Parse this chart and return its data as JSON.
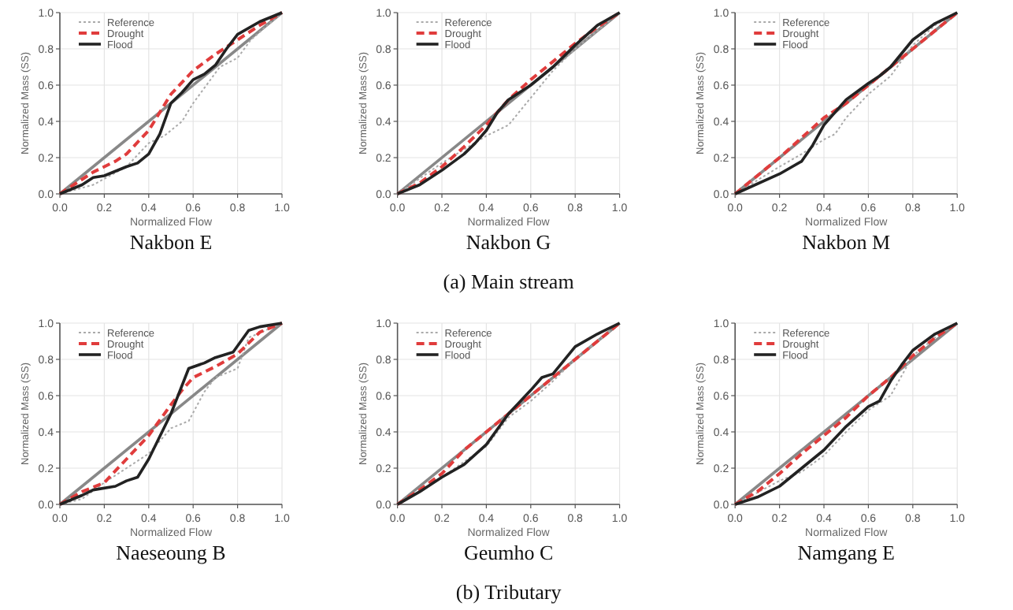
{
  "chart_data": [
    {
      "type": "line",
      "xlabel": "Normalized Flow",
      "ylabel": "Normalized Mass (SS)",
      "annotations": [
        "Nakbon E"
      ],
      "xlim": [
        0,
        1
      ],
      "ylim": [
        0,
        1
      ],
      "xticks": [
        {
          "value": 0,
          "label": "0.0"
        },
        {
          "value": 0.2,
          "label": "0.2"
        },
        {
          "value": 0.4,
          "label": "0.4"
        },
        {
          "value": 0.6,
          "label": "0.6"
        },
        {
          "value": 0.8,
          "label": "0.8"
        },
        {
          "value": 1,
          "label": "1.0"
        }
      ],
      "yticks": [
        {
          "value": 0,
          "label": "0.0"
        },
        {
          "value": 0.2,
          "label": "0.2"
        },
        {
          "value": 0.4,
          "label": "0.4"
        },
        {
          "value": 0.6,
          "label": "0.6"
        },
        {
          "value": 0.8,
          "label": "0.8"
        },
        {
          "value": 1,
          "label": "1.0"
        }
      ],
      "grid": true,
      "legend": "top left",
      "marker": "none",
      "series": [
        {
          "color": "#888888",
          "line_style": "solid",
          "x": [
            0,
            1
          ],
          "values": [
            0,
            1
          ]
        },
        {
          "name": "Reference",
          "color": "#aaaaaa",
          "line_style": "dotted",
          "x": [
            0,
            0.15,
            0.3,
            0.4,
            0.47,
            0.55,
            0.6,
            0.66,
            0.72,
            0.8,
            0.86,
            1
          ],
          "values": [
            0,
            0.05,
            0.15,
            0.28,
            0.32,
            0.4,
            0.5,
            0.6,
            0.7,
            0.75,
            0.85,
            1
          ]
        },
        {
          "name": "Drought",
          "color": "#e03c3c",
          "line_style": "dashed",
          "x": [
            0,
            0.15,
            0.25,
            0.3,
            0.4,
            0.5,
            0.6,
            0.7,
            0.8,
            0.9,
            1
          ],
          "values": [
            0,
            0.12,
            0.18,
            0.22,
            0.35,
            0.55,
            0.68,
            0.77,
            0.85,
            0.93,
            1
          ]
        },
        {
          "name": "Flood",
          "color": "#222222",
          "line_style": "solid",
          "x": [
            0,
            0.1,
            0.15,
            0.2,
            0.3,
            0.35,
            0.4,
            0.45,
            0.5,
            0.55,
            0.6,
            0.65,
            0.7,
            0.75,
            0.8,
            0.9,
            1
          ],
          "values": [
            0,
            0.05,
            0.09,
            0.1,
            0.15,
            0.17,
            0.22,
            0.33,
            0.5,
            0.56,
            0.63,
            0.66,
            0.71,
            0.8,
            0.88,
            0.95,
            1
          ]
        }
      ]
    },
    {
      "type": "line",
      "xlabel": "Normalized Flow",
      "ylabel": "Normalized Mass (SS)",
      "annotations": [
        "Nakbon G",
        "(a) Main stream"
      ],
      "xlim": [
        0,
        1
      ],
      "ylim": [
        0,
        1
      ],
      "xticks": [
        {
          "value": 0,
          "label": "0.0"
        },
        {
          "value": 0.2,
          "label": "0.2"
        },
        {
          "value": 0.4,
          "label": "0.4"
        },
        {
          "value": 0.6,
          "label": "0.6"
        },
        {
          "value": 0.8,
          "label": "0.8"
        },
        {
          "value": 1,
          "label": "1.0"
        }
      ],
      "yticks": [
        {
          "value": 0,
          "label": "0.0"
        },
        {
          "value": 0.2,
          "label": "0.2"
        },
        {
          "value": 0.4,
          "label": "0.4"
        },
        {
          "value": 0.6,
          "label": "0.6"
        },
        {
          "value": 0.8,
          "label": "0.8"
        },
        {
          "value": 1,
          "label": "1.0"
        }
      ],
      "grid": true,
      "legend": "top left",
      "marker": "none",
      "series": [
        {
          "color": "#888888",
          "line_style": "solid",
          "x": [
            0,
            1
          ],
          "values": [
            0,
            1
          ]
        },
        {
          "name": "Reference",
          "color": "#aaaaaa",
          "line_style": "dotted",
          "x": [
            0,
            0.2,
            0.4,
            0.5,
            0.6,
            0.7,
            0.8,
            0.9,
            1
          ],
          "values": [
            0,
            0.17,
            0.32,
            0.38,
            0.53,
            0.68,
            0.8,
            0.9,
            1
          ]
        },
        {
          "name": "Drought",
          "color": "#e03c3c",
          "line_style": "dashed",
          "x": [
            0,
            0.1,
            0.2,
            0.3,
            0.4,
            0.5,
            0.6,
            0.7,
            0.8,
            0.9,
            1
          ],
          "values": [
            0,
            0.06,
            0.15,
            0.26,
            0.38,
            0.52,
            0.63,
            0.73,
            0.83,
            0.92,
            1
          ]
        },
        {
          "name": "Flood",
          "color": "#222222",
          "line_style": "solid",
          "x": [
            0,
            0.1,
            0.2,
            0.3,
            0.35,
            0.4,
            0.45,
            0.5,
            0.6,
            0.7,
            0.8,
            0.9,
            1
          ],
          "values": [
            0,
            0.05,
            0.13,
            0.22,
            0.28,
            0.35,
            0.45,
            0.52,
            0.6,
            0.7,
            0.82,
            0.93,
            1
          ]
        }
      ]
    },
    {
      "type": "line",
      "xlabel": "Normalized Flow",
      "ylabel": "Normalized Mass (SS)",
      "annotations": [
        "Nakbon M"
      ],
      "xlim": [
        0,
        1
      ],
      "ylim": [
        0,
        1
      ],
      "xticks": [
        {
          "value": 0,
          "label": "0.0"
        },
        {
          "value": 0.2,
          "label": "0.2"
        },
        {
          "value": 0.4,
          "label": "0.4"
        },
        {
          "value": 0.6,
          "label": "0.6"
        },
        {
          "value": 0.8,
          "label": "0.8"
        },
        {
          "value": 1,
          "label": "1.0"
        }
      ],
      "yticks": [
        {
          "value": 0,
          "label": "0.0"
        },
        {
          "value": 0.2,
          "label": "0.2"
        },
        {
          "value": 0.4,
          "label": "0.4"
        },
        {
          "value": 0.6,
          "label": "0.6"
        },
        {
          "value": 0.8,
          "label": "0.8"
        },
        {
          "value": 1,
          "label": "1.0"
        }
      ],
      "grid": true,
      "legend": "top left",
      "marker": "none",
      "series": [
        {
          "color": "#888888",
          "line_style": "solid",
          "x": [
            0,
            1
          ],
          "values": [
            0,
            1
          ]
        },
        {
          "name": "Reference",
          "color": "#aaaaaa",
          "line_style": "dotted",
          "x": [
            0,
            0.2,
            0.3,
            0.4,
            0.45,
            0.5,
            0.6,
            0.7,
            0.8,
            0.9,
            1
          ],
          "values": [
            0,
            0.15,
            0.22,
            0.3,
            0.33,
            0.42,
            0.55,
            0.65,
            0.82,
            0.93,
            1
          ]
        },
        {
          "name": "Drought",
          "color": "#e03c3c",
          "line_style": "dashed",
          "x": [
            0,
            0.2,
            0.4,
            0.5,
            0.6,
            0.8,
            1
          ],
          "values": [
            0,
            0.2,
            0.42,
            0.5,
            0.6,
            0.8,
            1
          ]
        },
        {
          "name": "Flood",
          "color": "#222222",
          "line_style": "solid",
          "x": [
            0,
            0.2,
            0.3,
            0.35,
            0.4,
            0.5,
            0.6,
            0.65,
            0.7,
            0.8,
            0.9,
            1
          ],
          "values": [
            0,
            0.11,
            0.18,
            0.27,
            0.38,
            0.52,
            0.61,
            0.65,
            0.7,
            0.85,
            0.94,
            1
          ]
        }
      ]
    },
    {
      "type": "line",
      "xlabel": "Normalized Flow",
      "ylabel": "Normalized Mass (SS)",
      "annotations": [
        "Naeseoung B"
      ],
      "xlim": [
        0,
        1
      ],
      "ylim": [
        0,
        1
      ],
      "xticks": [
        {
          "value": 0,
          "label": "0.0"
        },
        {
          "value": 0.2,
          "label": "0.2"
        },
        {
          "value": 0.4,
          "label": "0.4"
        },
        {
          "value": 0.6,
          "label": "0.6"
        },
        {
          "value": 0.8,
          "label": "0.8"
        },
        {
          "value": 1,
          "label": "1.0"
        }
      ],
      "yticks": [
        {
          "value": 0,
          "label": "0.0"
        },
        {
          "value": 0.2,
          "label": "0.2"
        },
        {
          "value": 0.4,
          "label": "0.4"
        },
        {
          "value": 0.6,
          "label": "0.6"
        },
        {
          "value": 0.8,
          "label": "0.8"
        },
        {
          "value": 1,
          "label": "1.0"
        }
      ],
      "grid": true,
      "legend": "top left",
      "marker": "none",
      "series": [
        {
          "color": "#888888",
          "line_style": "solid",
          "x": [
            0,
            1
          ],
          "values": [
            0,
            1
          ]
        },
        {
          "name": "Reference",
          "color": "#aaaaaa",
          "line_style": "dotted",
          "x": [
            0,
            0.1,
            0.2,
            0.3,
            0.4,
            0.5,
            0.58,
            0.65,
            0.7,
            0.8,
            0.85,
            1
          ],
          "values": [
            0,
            0.03,
            0.12,
            0.2,
            0.28,
            0.42,
            0.46,
            0.62,
            0.7,
            0.75,
            0.92,
            1
          ]
        },
        {
          "name": "Drought",
          "color": "#e03c3c",
          "line_style": "dashed",
          "x": [
            0,
            0.1,
            0.2,
            0.3,
            0.4,
            0.5,
            0.55,
            0.6,
            0.7,
            0.8,
            0.9,
            1
          ],
          "values": [
            0,
            0.07,
            0.12,
            0.25,
            0.38,
            0.55,
            0.63,
            0.7,
            0.76,
            0.83,
            0.95,
            1
          ]
        },
        {
          "name": "Flood",
          "color": "#222222",
          "line_style": "solid",
          "x": [
            0,
            0.1,
            0.15,
            0.25,
            0.3,
            0.35,
            0.4,
            0.5,
            0.58,
            0.65,
            0.7,
            0.78,
            0.85,
            0.9,
            1
          ],
          "values": [
            0,
            0.05,
            0.08,
            0.1,
            0.13,
            0.15,
            0.25,
            0.5,
            0.75,
            0.78,
            0.81,
            0.84,
            0.96,
            0.98,
            1
          ]
        }
      ]
    },
    {
      "type": "line",
      "xlabel": "Normalized Flow",
      "ylabel": "Normalized Mass (SS)",
      "annotations": [
        "Geumho C",
        "(b) Tributary"
      ],
      "xlim": [
        0,
        1
      ],
      "ylim": [
        0,
        1
      ],
      "xticks": [
        {
          "value": 0,
          "label": "0.0"
        },
        {
          "value": 0.2,
          "label": "0.2"
        },
        {
          "value": 0.4,
          "label": "0.4"
        },
        {
          "value": 0.6,
          "label": "0.6"
        },
        {
          "value": 0.8,
          "label": "0.8"
        },
        {
          "value": 1,
          "label": "1.0"
        }
      ],
      "yticks": [
        {
          "value": 0,
          "label": "0.0"
        },
        {
          "value": 0.2,
          "label": "0.2"
        },
        {
          "value": 0.4,
          "label": "0.4"
        },
        {
          "value": 0.6,
          "label": "0.6"
        },
        {
          "value": 0.8,
          "label": "0.8"
        },
        {
          "value": 1,
          "label": "1.0"
        }
      ],
      "grid": true,
      "legend": "top left",
      "marker": "none",
      "series": [
        {
          "color": "#888888",
          "line_style": "solid",
          "x": [
            0,
            1
          ],
          "values": [
            0,
            1
          ]
        },
        {
          "name": "Reference",
          "color": "#aaaaaa",
          "line_style": "dotted",
          "x": [
            0,
            0.2,
            0.4,
            0.5,
            0.6,
            0.7,
            0.8,
            0.9,
            1
          ],
          "values": [
            0,
            0.15,
            0.32,
            0.48,
            0.57,
            0.68,
            0.8,
            0.9,
            1
          ]
        },
        {
          "name": "Drought",
          "color": "#e03c3c",
          "line_style": "dashed",
          "x": [
            0,
            0.1,
            0.2,
            0.3,
            0.4,
            0.5,
            0.6,
            0.7,
            0.8,
            0.9,
            1
          ],
          "values": [
            0,
            0.08,
            0.17,
            0.3,
            0.4,
            0.5,
            0.6,
            0.7,
            0.8,
            0.9,
            1
          ]
        },
        {
          "name": "Flood",
          "color": "#222222",
          "line_style": "solid",
          "x": [
            0,
            0.1,
            0.2,
            0.3,
            0.4,
            0.5,
            0.6,
            0.65,
            0.7,
            0.8,
            0.9,
            1
          ],
          "values": [
            0,
            0.07,
            0.15,
            0.22,
            0.33,
            0.5,
            0.63,
            0.7,
            0.72,
            0.87,
            0.94,
            1
          ]
        }
      ]
    },
    {
      "type": "line",
      "xlabel": "Normalized Flow",
      "ylabel": "Normalized Mass (SS)",
      "annotations": [
        "Namgang E"
      ],
      "xlim": [
        0,
        1
      ],
      "ylim": [
        0,
        1
      ],
      "xticks": [
        {
          "value": 0,
          "label": "0.0"
        },
        {
          "value": 0.2,
          "label": "0.2"
        },
        {
          "value": 0.4,
          "label": "0.4"
        },
        {
          "value": 0.6,
          "label": "0.6"
        },
        {
          "value": 0.8,
          "label": "0.8"
        },
        {
          "value": 1,
          "label": "1.0"
        }
      ],
      "yticks": [
        {
          "value": 0,
          "label": "0.0"
        },
        {
          "value": 0.2,
          "label": "0.2"
        },
        {
          "value": 0.4,
          "label": "0.4"
        },
        {
          "value": 0.6,
          "label": "0.6"
        },
        {
          "value": 0.8,
          "label": "0.8"
        },
        {
          "value": 1,
          "label": "1.0"
        }
      ],
      "grid": true,
      "legend": "top left",
      "marker": "none",
      "series": [
        {
          "color": "#888888",
          "line_style": "solid",
          "x": [
            0,
            1
          ],
          "values": [
            0,
            1
          ]
        },
        {
          "name": "Reference",
          "color": "#aaaaaa",
          "line_style": "dotted",
          "x": [
            0,
            0.2,
            0.3,
            0.4,
            0.5,
            0.6,
            0.7,
            0.8,
            0.9,
            1
          ],
          "values": [
            0,
            0.13,
            0.18,
            0.27,
            0.4,
            0.52,
            0.6,
            0.82,
            0.92,
            1
          ]
        },
        {
          "name": "Drought",
          "color": "#e03c3c",
          "line_style": "dashed",
          "x": [
            0,
            0.1,
            0.2,
            0.3,
            0.4,
            0.5,
            0.6,
            0.7,
            0.8,
            0.9,
            1
          ],
          "values": [
            0,
            0.07,
            0.17,
            0.28,
            0.38,
            0.48,
            0.6,
            0.7,
            0.82,
            0.92,
            1
          ]
        },
        {
          "name": "Flood",
          "color": "#222222",
          "line_style": "solid",
          "x": [
            0,
            0.1,
            0.2,
            0.3,
            0.4,
            0.5,
            0.6,
            0.65,
            0.7,
            0.75,
            0.8,
            0.9,
            1
          ],
          "values": [
            0,
            0.04,
            0.1,
            0.2,
            0.3,
            0.43,
            0.54,
            0.57,
            0.68,
            0.77,
            0.85,
            0.94,
            1
          ]
        }
      ]
    }
  ]
}
